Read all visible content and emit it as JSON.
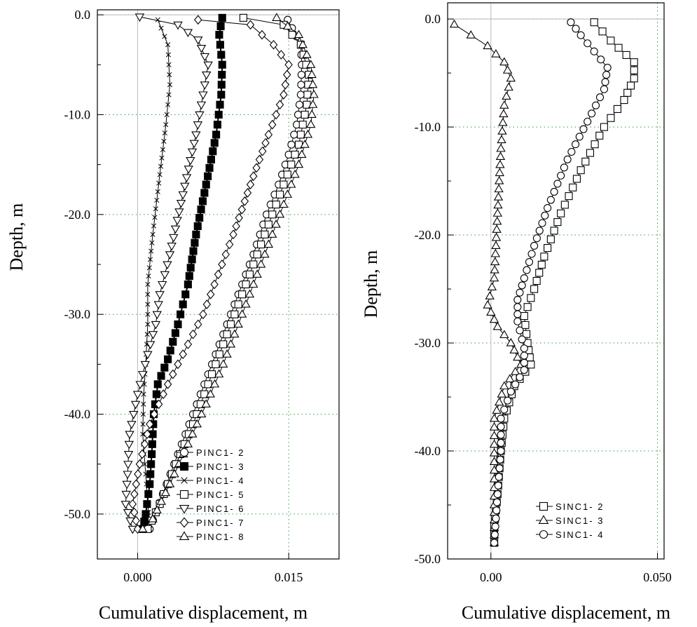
{
  "chart_data": [
    {
      "type": "line",
      "xlabel": "Cumulative displacement, m",
      "ylabel": "Depth, m",
      "xlim": [
        -0.004,
        0.02
      ],
      "ylim": [
        -54.5,
        0.5
      ],
      "x_ticks": [
        {
          "value": 0.0,
          "label": "0.000"
        },
        {
          "value": 0.015,
          "label": "0.015"
        }
      ],
      "y_ticks": [
        {
          "value": 0,
          "label": "0.0"
        },
        {
          "value": -10,
          "label": "-10.0"
        },
        {
          "value": -20,
          "label": "-20.0"
        },
        {
          "value": -30,
          "label": "-30.0"
        },
        {
          "value": -40,
          "label": "-40.0"
        },
        {
          "value": -50,
          "label": "-50.0"
        }
      ],
      "grid": "dotted-green",
      "legend_position": "bottom-right",
      "series": [
        {
          "name": "PINC1- 2",
          "marker": "circle",
          "points": [
            [
              0.0149,
              -0.5
            ],
            [
              0.0162,
              -3
            ],
            [
              0.0163,
              -5
            ],
            [
              0.0162,
              -8
            ],
            [
              0.0158,
              -11
            ],
            [
              0.015,
              -14
            ],
            [
              0.014,
              -17
            ],
            [
              0.0128,
              -20
            ],
            [
              0.0115,
              -24
            ],
            [
              0.01,
              -28
            ],
            [
              0.0085,
              -32
            ],
            [
              0.007,
              -36
            ],
            [
              0.0055,
              -40
            ],
            [
              0.004,
              -44
            ],
            [
              0.0025,
              -48
            ],
            [
              0.0012,
              -51.5
            ]
          ]
        },
        {
          "name": "PINC1- 3",
          "marker": "square-filled",
          "points": [
            [
              0.0084,
              -0.3
            ],
            [
              0.0081,
              -2
            ],
            [
              0.0084,
              -5
            ],
            [
              0.0083,
              -8
            ],
            [
              0.0078,
              -12
            ],
            [
              0.0068,
              -17
            ],
            [
              0.0058,
              -22
            ],
            [
              0.005,
              -27
            ],
            [
              0.004,
              -31
            ],
            [
              0.003,
              -34.5
            ],
            [
              0.002,
              -37
            ],
            [
              0.0016,
              -40
            ],
            [
              0.0014,
              -44
            ],
            [
              0.0012,
              -47
            ],
            [
              0.0008,
              -50
            ],
            [
              0.0005,
              -51.5
            ]
          ]
        },
        {
          "name": "PINC1- 4",
          "marker": "x",
          "points": [
            [
              0.002,
              -0.5
            ],
            [
              0.003,
              -3
            ],
            [
              0.0032,
              -7
            ],
            [
              0.0028,
              -11
            ],
            [
              0.0022,
              -16
            ],
            [
              0.0015,
              -22
            ],
            [
              0.001,
              -27
            ],
            [
              0.001,
              -31
            ],
            [
              0.0008,
              -35
            ],
            [
              0.0006,
              -38
            ],
            [
              0.0005,
              -42
            ],
            [
              0.0008,
              -46
            ],
            [
              0.001,
              -49
            ],
            [
              0.0012,
              -51.5
            ]
          ]
        },
        {
          "name": "PINC1- 5",
          "marker": "square",
          "points": [
            [
              0.0105,
              -0.3
            ],
            [
              0.0145,
              -1
            ],
            [
              0.0162,
              -3
            ],
            [
              0.017,
              -6
            ],
            [
              0.0168,
              -9
            ],
            [
              0.016,
              -13
            ],
            [
              0.0145,
              -17
            ],
            [
              0.013,
              -21
            ],
            [
              0.0115,
              -25
            ],
            [
              0.01,
              -29
            ],
            [
              0.0085,
              -33
            ],
            [
              0.007,
              -37
            ],
            [
              0.0055,
              -41
            ],
            [
              0.0038,
              -45
            ],
            [
              0.0022,
              -49
            ],
            [
              0.001,
              -51.5
            ]
          ]
        },
        {
          "name": "PINC1- 6",
          "marker": "triangle-down",
          "points": [
            [
              0.0002,
              -0.2
            ],
            [
              0.004,
              -1
            ],
            [
              0.006,
              -2.5
            ],
            [
              0.007,
              -5
            ],
            [
              0.0065,
              -8
            ],
            [
              0.0058,
              -12
            ],
            [
              0.0045,
              -18
            ],
            [
              0.0032,
              -24
            ],
            [
              0.0022,
              -28
            ],
            [
              0.0018,
              -31
            ],
            [
              0.001,
              -34
            ],
            [
              0.0,
              -38
            ],
            [
              -0.0008,
              -42
            ],
            [
              -0.001,
              -46
            ],
            [
              -0.0012,
              -49
            ],
            [
              -0.0005,
              -51.5
            ]
          ]
        },
        {
          "name": "PINC1- 7",
          "marker": "diamond",
          "points": [
            [
              0.006,
              -0.5
            ],
            [
              0.0112,
              -1
            ],
            [
              0.0135,
              -3
            ],
            [
              0.015,
              -5
            ],
            [
              0.0145,
              -8
            ],
            [
              0.013,
              -12
            ],
            [
              0.0112,
              -17
            ],
            [
              0.0095,
              -22
            ],
            [
              0.008,
              -26
            ],
            [
              0.0065,
              -30
            ],
            [
              0.0045,
              -34
            ],
            [
              0.003,
              -37
            ],
            [
              0.0012,
              -41
            ],
            [
              0.0002,
              -45
            ],
            [
              -0.0005,
              -49
            ],
            [
              0.0,
              -51.5
            ]
          ]
        },
        {
          "name": "PINC1- 8",
          "marker": "triangle",
          "points": [
            [
              0.0138,
              -0.3
            ],
            [
              0.016,
              -2
            ],
            [
              0.0172,
              -5
            ],
            [
              0.0175,
              -8
            ],
            [
              0.0172,
              -11
            ],
            [
              0.016,
              -15
            ],
            [
              0.0145,
              -19
            ],
            [
              0.013,
              -23
            ],
            [
              0.0115,
              -27
            ],
            [
              0.01,
              -31
            ],
            [
              0.0085,
              -35
            ],
            [
              0.0068,
              -39
            ],
            [
              0.005,
              -43
            ],
            [
              0.0032,
              -47
            ],
            [
              0.0015,
              -50.5
            ],
            [
              0.0005,
              -51.5
            ]
          ]
        }
      ]
    },
    {
      "type": "line",
      "xlabel": "Cumulative displacement, m",
      "ylabel": "Depth, m",
      "xlim": [
        -0.013,
        0.052
      ],
      "ylim": [
        -50,
        1.5
      ],
      "x_ticks": [
        {
          "value": 0.0,
          "label": "0.00"
        },
        {
          "value": 0.05,
          "label": "0.050"
        }
      ],
      "y_ticks": [
        {
          "value": 0,
          "label": "0.0"
        },
        {
          "value": -10,
          "label": "-10.0"
        },
        {
          "value": -20,
          "label": "-20.0"
        },
        {
          "value": -30,
          "label": "-30.0"
        },
        {
          "value": -40,
          "label": "-40.0"
        },
        {
          "value": -50,
          "label": "-50.0"
        }
      ],
      "grid": "dotted-green",
      "legend_position": "bottom-right",
      "series": [
        {
          "name": "SINC1- 2",
          "marker": "square",
          "points": [
            [
              0.031,
              -0.3
            ],
            [
              0.036,
              -2
            ],
            [
              0.043,
              -4
            ],
            [
              0.043,
              -5.5
            ],
            [
              0.04,
              -7.5
            ],
            [
              0.034,
              -10
            ],
            [
              0.027,
              -14
            ],
            [
              0.021,
              -18
            ],
            [
              0.016,
              -22
            ],
            [
              0.013,
              -25
            ],
            [
              0.01,
              -27.5
            ],
            [
              0.011,
              -30
            ],
            [
              0.012,
              -32
            ],
            [
              0.007,
              -34
            ],
            [
              0.004,
              -37
            ],
            [
              0.003,
              -40
            ],
            [
              0.002,
              -44
            ],
            [
              0.001,
              -47
            ],
            [
              0.001,
              -48.5
            ]
          ]
        },
        {
          "name": "SINC1- 3",
          "marker": "triangle",
          "points": [
            [
              -0.011,
              -0.5
            ],
            [
              -0.006,
              -1.5
            ],
            [
              -0.001,
              -2.5
            ],
            [
              0.004,
              -4
            ],
            [
              0.006,
              -5.5
            ],
            [
              0.004,
              -8
            ],
            [
              0.003,
              -12
            ],
            [
              0.002,
              -18
            ],
            [
              0.001,
              -24
            ],
            [
              -0.001,
              -26.5
            ],
            [
              0.002,
              -28.5
            ],
            [
              0.006,
              -30
            ],
            [
              0.009,
              -32
            ],
            [
              0.004,
              -34
            ],
            [
              0.001,
              -37
            ],
            [
              0.001,
              -41
            ],
            [
              0.001,
              -45
            ],
            [
              0.001,
              -48.5
            ]
          ]
        },
        {
          "name": "SINC1- 4",
          "marker": "circle",
          "points": [
            [
              0.024,
              -0.3
            ],
            [
              0.027,
              -1.5
            ],
            [
              0.031,
              -3
            ],
            [
              0.035,
              -4.5
            ],
            [
              0.034,
              -6.5
            ],
            [
              0.029,
              -9.5
            ],
            [
              0.023,
              -13
            ],
            [
              0.017,
              -17.5
            ],
            [
              0.013,
              -21
            ],
            [
              0.01,
              -24
            ],
            [
              0.008,
              -26
            ],
            [
              0.008,
              -28
            ],
            [
              0.01,
              -30.5
            ],
            [
              0.01,
              -32.5
            ],
            [
              0.006,
              -34.5
            ],
            [
              0.003,
              -37
            ],
            [
              0.003,
              -40
            ],
            [
              0.002,
              -44
            ],
            [
              0.001,
              -48.5
            ]
          ]
        }
      ]
    }
  ]
}
